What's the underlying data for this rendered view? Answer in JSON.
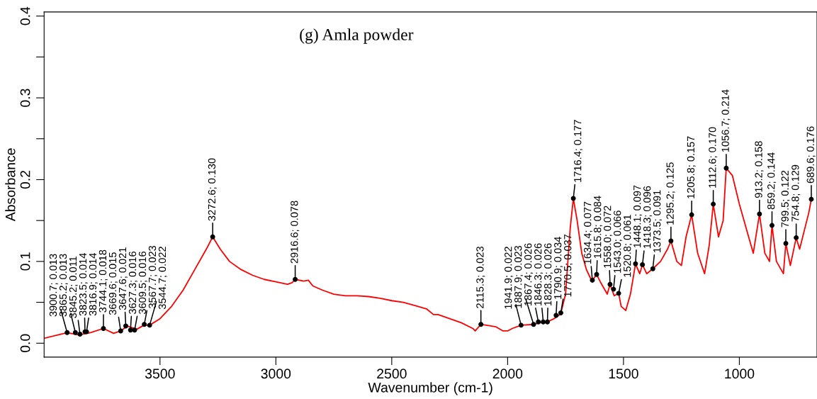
{
  "chart_data": {
    "type": "line",
    "title": "(g) Amla powder",
    "xlabel": "Wavenumber (cm-1)",
    "ylabel": "Absorbance",
    "xlim": [
      4000,
      665
    ],
    "ylim": [
      -0.017,
      0.405
    ],
    "xticks": [
      3500,
      3000,
      2500,
      2000,
      1500,
      1000
    ],
    "yticks": [
      {
        "value": 0,
        "label": "0.0"
      },
      {
        "value": 0.05,
        "label": null
      },
      0.1,
      {
        "value": 0.15,
        "label": null
      },
      0.2,
      {
        "value": 0.25,
        "label": null
      },
      0.3,
      {
        "value": 0.35,
        "label": null
      },
      0.4
    ],
    "grid": false,
    "legend": false,
    "marker": "none",
    "line_style": "solid",
    "series": [
      {
        "color": "#ff0000",
        "x": [
          4000,
          3900,
          3850,
          3800,
          3744,
          3700,
          3670,
          3640,
          3600,
          3570,
          3545,
          3500,
          3450,
          3400,
          3350,
          3300,
          3272.6,
          3240,
          3200,
          3150,
          3100,
          3050,
          3000,
          2950,
          2930,
          2916.6,
          2880,
          2860,
          2840,
          2800,
          2750,
          2700,
          2650,
          2600,
          2550,
          2500,
          2450,
          2400,
          2350,
          2320,
          2300,
          2250,
          2200,
          2150,
          2140,
          2115.3,
          2050,
          2020,
          2000,
          1980,
          1941.9,
          1887.9,
          1860,
          1828,
          1800,
          1779,
          1770,
          1750,
          1730,
          1716.4,
          1700,
          1680,
          1660,
          1640,
          1634,
          1615.8,
          1600,
          1570,
          1558,
          1540,
          1520.8,
          1510,
          1490,
          1470,
          1448.1,
          1430,
          1418.3,
          1400,
          1373.5,
          1340,
          1310,
          1295.2,
          1270,
          1250,
          1230,
          1205.8,
          1180,
          1150,
          1130,
          1112.6,
          1090,
          1070,
          1056.7,
          1030,
          1000,
          970,
          940,
          913.2,
          890,
          870,
          859.2,
          840,
          810,
          799.5,
          780,
          754.8,
          740,
          700,
          689.6
        ],
        "values": [
          0.006,
          0.013,
          0.01,
          0.013,
          0.018,
          0.012,
          0.015,
          0.021,
          0.017,
          0.022,
          0.022,
          0.03,
          0.045,
          0.065,
          0.09,
          0.115,
          0.13,
          0.115,
          0.1,
          0.09,
          0.083,
          0.078,
          0.075,
          0.072,
          0.074,
          0.078,
          0.076,
          0.077,
          0.07,
          0.065,
          0.06,
          0.058,
          0.058,
          0.057,
          0.055,
          0.052,
          0.05,
          0.046,
          0.042,
          0.035,
          0.035,
          0.03,
          0.025,
          0.018,
          0.015,
          0.023,
          0.02,
          0.015,
          0.015,
          0.018,
          0.022,
          0.023,
          0.025,
          0.026,
          0.03,
          0.034,
          0.037,
          0.06,
          0.14,
          0.177,
          0.15,
          0.11,
          0.09,
          0.078,
          0.077,
          0.084,
          0.075,
          0.06,
          0.072,
          0.058,
          0.061,
          0.045,
          0.04,
          0.06,
          0.097,
          0.085,
          0.096,
          0.085,
          0.091,
          0.1,
          0.115,
          0.125,
          0.1,
          0.095,
          0.13,
          0.157,
          0.11,
          0.085,
          0.12,
          0.17,
          0.13,
          0.15,
          0.214,
          0.205,
          0.17,
          0.14,
          0.11,
          0.158,
          0.11,
          0.1,
          0.144,
          0.1,
          0.085,
          0.122,
          0.095,
          0.129,
          0.115,
          0.16,
          0.176
        ]
      }
    ],
    "annotations": [
      {
        "text": "3900.7; 0.013",
        "x": 3900.7,
        "y": 0.013
      },
      {
        "text": "3865.2; 0.013",
        "x": 3865.2,
        "y": 0.013
      },
      {
        "text": "3845.2; 0.011",
        "x": 3845.2,
        "y": 0.011
      },
      {
        "text": "3823.5; 0.014",
        "x": 3823.5,
        "y": 0.014
      },
      {
        "text": "3816.9; 0.014",
        "x": 3816.9,
        "y": 0.014
      },
      {
        "text": "3744.1; 0.018",
        "x": 3744.1,
        "y": 0.018
      },
      {
        "text": "3669.6; 0.015",
        "x": 3669.6,
        "y": 0.015
      },
      {
        "text": "3647.6; 0.021",
        "x": 3647.6,
        "y": 0.021
      },
      {
        "text": "3627.3; 0.016",
        "x": 3627.3,
        "y": 0.016
      },
      {
        "text": "3609.5; 0.016",
        "x": 3609.5,
        "y": 0.016
      },
      {
        "text": "3567.7; 0.023",
        "x": 3567.7,
        "y": 0.023
      },
      {
        "text": "3544.7; 0.022",
        "x": 3544.7,
        "y": 0.022
      },
      {
        "text": "3272.6; 0.130",
        "x": 3272.6,
        "y": 0.13
      },
      {
        "text": "2916.6; 0.078",
        "x": 2916.6,
        "y": 0.078
      },
      {
        "text": "2115.3; 0.023",
        "x": 2115.3,
        "y": 0.023
      },
      {
        "text": "1941.9; 0.022",
        "x": 1941.9,
        "y": 0.022
      },
      {
        "text": "1887.9; 0.023",
        "x": 1887.9,
        "y": 0.023
      },
      {
        "text": "1867.4; 0.026",
        "x": 1867.4,
        "y": 0.026
      },
      {
        "text": "1846.3; 0.026",
        "x": 1846.3,
        "y": 0.026
      },
      {
        "text": "1828.3; 0.026",
        "x": 1828.3,
        "y": 0.026
      },
      {
        "text": "1790.9; 0.034",
        "x": 1790.9,
        "y": 0.034
      },
      {
        "text": "1770.5; 0.037",
        "x": 1770.5,
        "y": 0.037
      },
      {
        "text": "1716.4; 0.177",
        "x": 1716.4,
        "y": 0.177
      },
      {
        "text": "1634.4; 0.077",
        "x": 1634.4,
        "y": 0.077
      },
      {
        "text": "1615.8; 0.084",
        "x": 1615.8,
        "y": 0.084
      },
      {
        "text": "1558.0; 0.072",
        "x": 1558.0,
        "y": 0.072
      },
      {
        "text": "1543.0; 0.066",
        "x": 1543.0,
        "y": 0.066
      },
      {
        "text": "1520.8; 0.061",
        "x": 1520.8,
        "y": 0.061
      },
      {
        "text": "1448.1; 0.097",
        "x": 1448.1,
        "y": 0.097
      },
      {
        "text": "1418.3; 0.096",
        "x": 1418.3,
        "y": 0.096
      },
      {
        "text": "1373.5; 0.091",
        "x": 1373.5,
        "y": 0.091
      },
      {
        "text": "1295.2; 0.125",
        "x": 1295.2,
        "y": 0.125
      },
      {
        "text": "1205.8; 0.157",
        "x": 1205.8,
        "y": 0.157
      },
      {
        "text": "1112.6; 0.170",
        "x": 1112.6,
        "y": 0.17
      },
      {
        "text": "1056.7; 0.214",
        "x": 1056.7,
        "y": 0.214
      },
      {
        "text": "913.2; 0.158",
        "x": 913.2,
        "y": 0.158
      },
      {
        "text": "859.2; 0.144",
        "x": 859.2,
        "y": 0.144
      },
      {
        "text": "799.5; 0.122",
        "x": 799.5,
        "y": 0.122
      },
      {
        "text": "754.8; 0.129",
        "x": 754.8,
        "y": 0.129
      },
      {
        "text": "689.6; 0.176",
        "x": 689.6,
        "y": 0.176
      }
    ]
  }
}
